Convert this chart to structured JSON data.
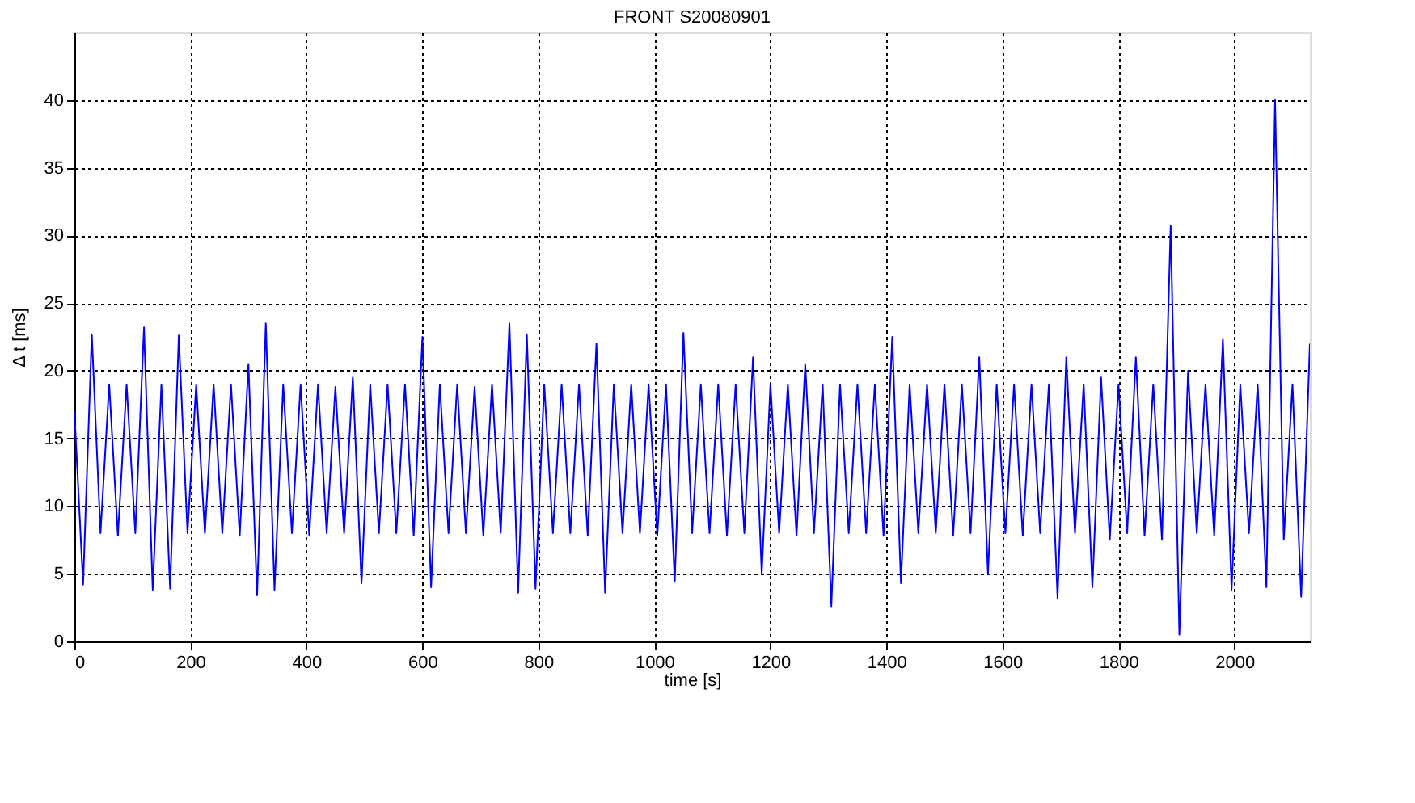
{
  "chart_data": {
    "type": "line",
    "title": "FRONT S20080901",
    "xlabel": "time [s]",
    "ylabel": "Δ t [ms]",
    "x": [
      0,
      15,
      30,
      45,
      60,
      75,
      90,
      105,
      120,
      135,
      150,
      165,
      180,
      195,
      210,
      225,
      240,
      255,
      270,
      285,
      300,
      315,
      330,
      345,
      360,
      375,
      390,
      405,
      420,
      435,
      450,
      465,
      480,
      495,
      510,
      525,
      540,
      555,
      570,
      585,
      600,
      615,
      630,
      645,
      660,
      675,
      690,
      705,
      720,
      735,
      750,
      765,
      780,
      795,
      810,
      825,
      840,
      855,
      870,
      885,
      900,
      915,
      930,
      945,
      960,
      975,
      990,
      1005,
      1020,
      1035,
      1050,
      1065,
      1080,
      1095,
      1110,
      1125,
      1140,
      1155,
      1170,
      1185,
      1200,
      1215,
      1230,
      1245,
      1260,
      1275,
      1290,
      1305,
      1320,
      1335,
      1350,
      1365,
      1380,
      1395,
      1410,
      1425,
      1440,
      1455,
      1470,
      1485,
      1500,
      1515,
      1530,
      1545,
      1560,
      1575,
      1590,
      1605,
      1620,
      1635,
      1650,
      1665,
      1680,
      1695,
      1710,
      1725,
      1740,
      1755,
      1770,
      1785,
      1800,
      1815,
      1830,
      1845,
      1860,
      1875,
      1890,
      1905,
      1920,
      1935,
      1950,
      1965,
      1980,
      1995,
      2010,
      2025,
      2040,
      2055,
      2070,
      2085,
      2100,
      2115,
      2130
    ],
    "series": [
      {
        "color": "#0000ff",
        "values": [
          17,
          4.2,
          22.7,
          8,
          19,
          7.8,
          19,
          8,
          23.2,
          3.8,
          19,
          3.9,
          22.6,
          8,
          19,
          8,
          19,
          8,
          19,
          7.8,
          20.5,
          3.4,
          23.5,
          3.8,
          19,
          8,
          19,
          7.8,
          19,
          8,
          18.8,
          8,
          19.5,
          4.3,
          19,
          8,
          19,
          8,
          19,
          7.8,
          22.5,
          4,
          19,
          8,
          19,
          8,
          18.8,
          7.8,
          19,
          8,
          23.5,
          3.6,
          22.7,
          3.9,
          19,
          8,
          19,
          8,
          19,
          7.8,
          22,
          3.6,
          19,
          8,
          19,
          8,
          19,
          7.8,
          19,
          4.4,
          22.8,
          8,
          19,
          8,
          19,
          7.8,
          19,
          8,
          21,
          5,
          19,
          8,
          19,
          7.8,
          20.5,
          8,
          19,
          2.6,
          19,
          8,
          19,
          8,
          19,
          7.8,
          22.5,
          4.3,
          19,
          8,
          19,
          8,
          19,
          7.8,
          19,
          8,
          21,
          5,
          19,
          8,
          19,
          7.8,
          19,
          8,
          19,
          3.2,
          21,
          8,
          19,
          4,
          19.5,
          7.5,
          19,
          8,
          21,
          7.8,
          19,
          7.5,
          30.7,
          0.5,
          20,
          8,
          19,
          7.8,
          22.3,
          3.8,
          19,
          8,
          19,
          4,
          40,
          7.5,
          19,
          3.3,
          22
        ]
      }
    ],
    "xlim": [
      0,
      2130
    ],
    "ylim": [
      0,
      45
    ],
    "xticks": [
      0,
      200,
      400,
      600,
      800,
      1000,
      1200,
      1400,
      1600,
      1800,
      2000
    ],
    "yticks": [
      0,
      5,
      10,
      15,
      20,
      25,
      30,
      35,
      40
    ],
    "grid": true,
    "marker": "none",
    "line_style": "solid"
  }
}
